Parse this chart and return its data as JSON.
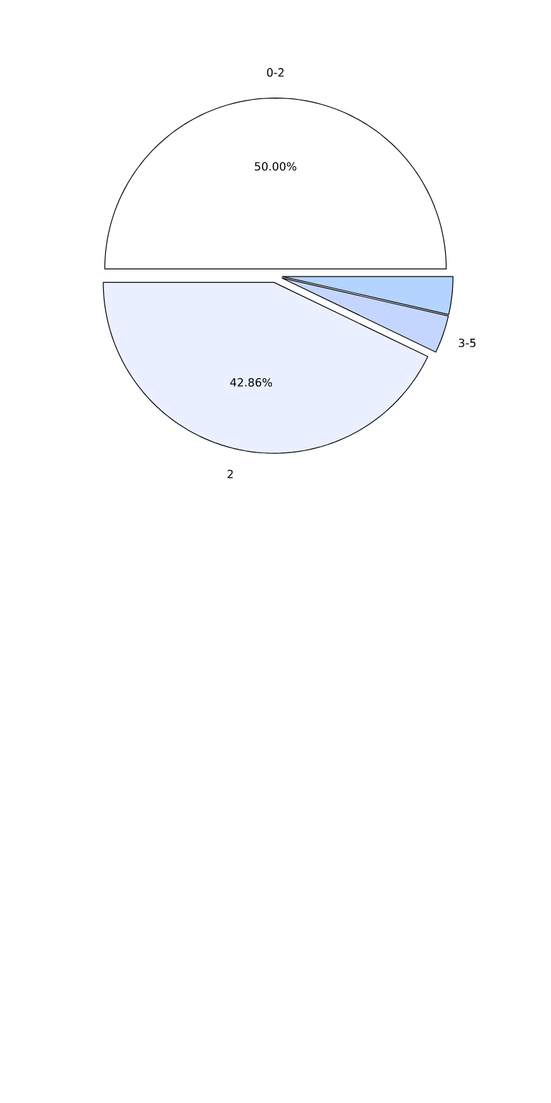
{
  "chart_data": {
    "type": "pie",
    "categories": [
      "0-2",
      "2",
      "3-5",
      null
    ],
    "values": [
      50.0,
      42.86,
      3.57,
      3.57
    ],
    "value_labels": [
      "50.00%",
      "42.86%",
      null,
      null
    ],
    "colors": [
      "#ffffff",
      "#eaf0ff",
      "#c4d6ff",
      "#b4d4ff"
    ]
  }
}
